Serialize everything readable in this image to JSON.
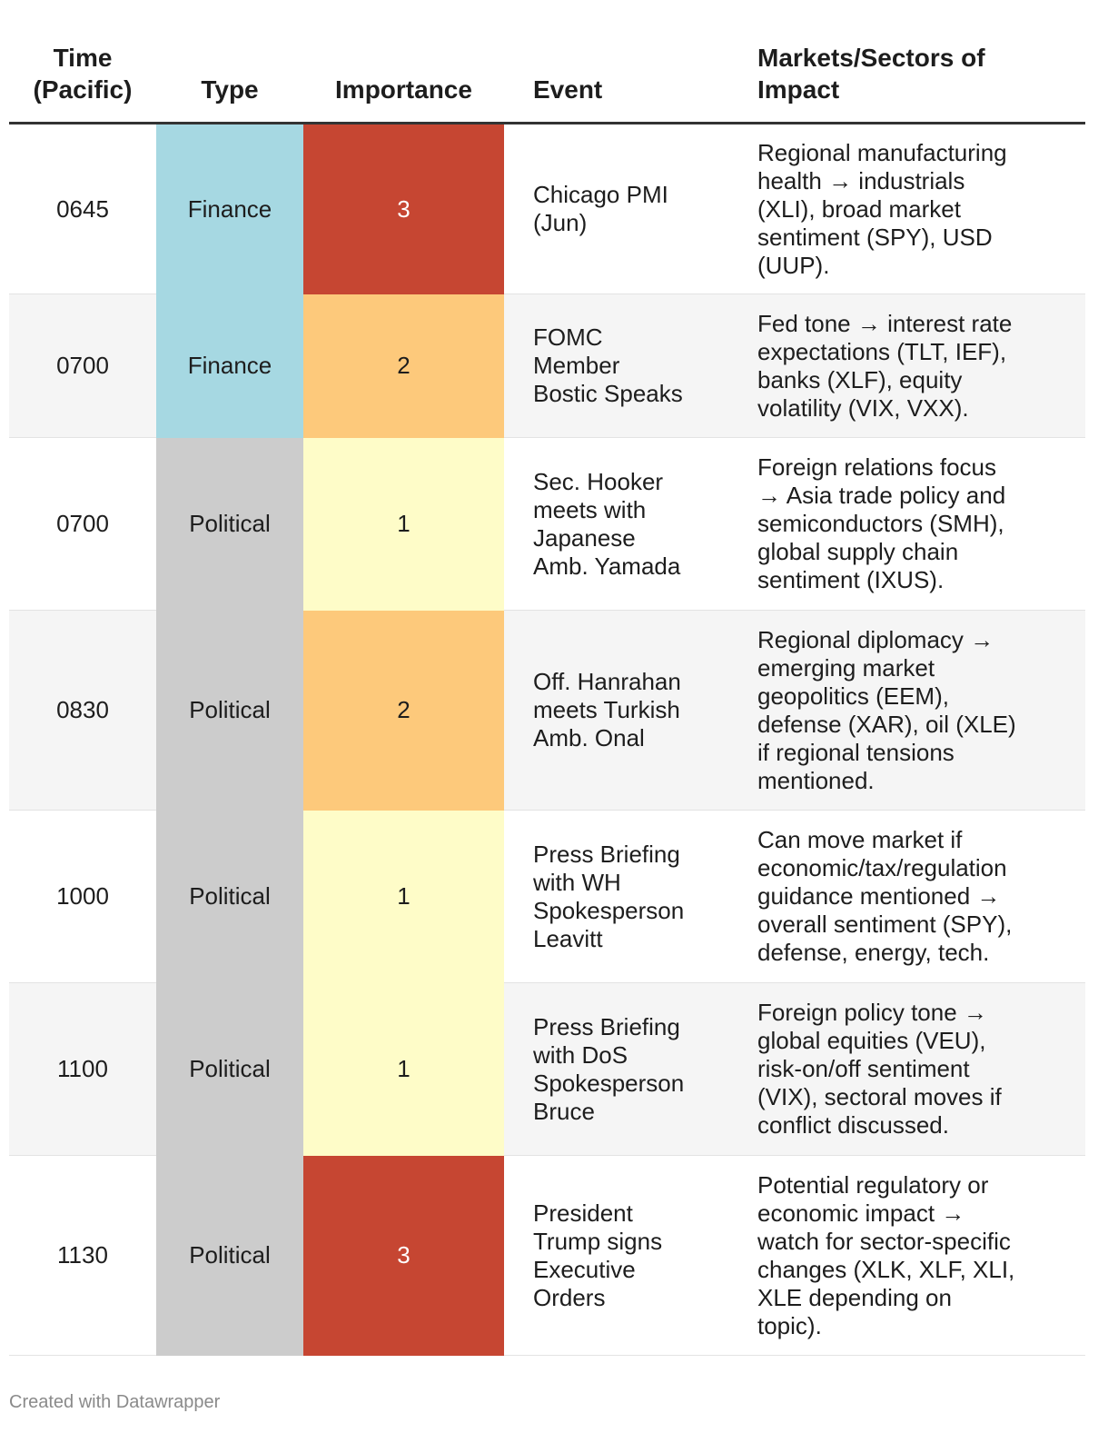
{
  "chart_data": {
    "type": "table",
    "columns": {
      "time": [
        "Time",
        "(Pacific)"
      ],
      "type": "Type",
      "importance": "Importance",
      "event": "Event",
      "impact": [
        "Markets/Sectors of",
        "Impact"
      ]
    },
    "rows": [
      {
        "time": "0645",
        "type": "Finance",
        "importance": 3,
        "event": [
          "Chicago PMI",
          "(Jun)"
        ],
        "impact": [
          "Regional manufacturing",
          "health → industrials",
          "(XLI), broad market",
          "sentiment (SPY), USD",
          "(UUP)."
        ]
      },
      {
        "time": "0700",
        "type": "Finance",
        "importance": 2,
        "event": [
          "FOMC",
          "Member",
          "Bostic Speaks"
        ],
        "impact": [
          "Fed tone → interest rate",
          "expectations (TLT, IEF),",
          "banks (XLF), equity",
          "volatility (VIX, VXX)."
        ]
      },
      {
        "time": "0700",
        "type": "Political",
        "importance": 1,
        "event": [
          "Sec. Hooker",
          "meets with",
          "Japanese",
          "Amb. Yamada"
        ],
        "impact": [
          "Foreign relations focus",
          "→ Asia trade policy and",
          "semiconductors (SMH),",
          "global supply chain",
          "sentiment (IXUS)."
        ]
      },
      {
        "time": "0830",
        "type": "Political",
        "importance": 2,
        "event": [
          "Off. Hanrahan",
          "meets Turkish",
          "Amb. Onal"
        ],
        "impact": [
          "Regional diplomacy →",
          "emerging market",
          "geopolitics (EEM),",
          "defense (XAR), oil (XLE)",
          "if regional tensions",
          "mentioned."
        ]
      },
      {
        "time": "1000",
        "type": "Political",
        "importance": 1,
        "event": [
          "Press Briefing",
          "with WH",
          "Spokesperson",
          "Leavitt"
        ],
        "impact": [
          "Can move market if",
          "economic/tax/regulation",
          "guidance mentioned →",
          "overall sentiment (SPY),",
          "defense, energy, tech."
        ]
      },
      {
        "time": "1100",
        "type": "Political",
        "importance": 1,
        "event": [
          "Press Briefing",
          "with DoS",
          "Spokesperson",
          "Bruce"
        ],
        "impact": [
          "Foreign policy tone →",
          "global equities (VEU),",
          "risk-on/off sentiment",
          "(VIX), sectoral moves if",
          "conflict discussed."
        ]
      },
      {
        "time": "1130",
        "type": "Political",
        "importance": 3,
        "event": [
          "President",
          "Trump signs",
          "Executive",
          "Orders"
        ],
        "impact": [
          "Potential regulatory or",
          "economic impact →",
          "watch for sector-specific",
          "changes (XLK, XLF, XLI,",
          "XLE depending on",
          "topic)."
        ]
      }
    ],
    "type_colors": {
      "Finance": "#a6d8e2",
      "Political": "#cccccc"
    },
    "importance_colors": {
      "1": "#fefcc8",
      "2": "#fdc97b",
      "3": "#c64632"
    }
  },
  "footer": "Created with Datawrapper"
}
